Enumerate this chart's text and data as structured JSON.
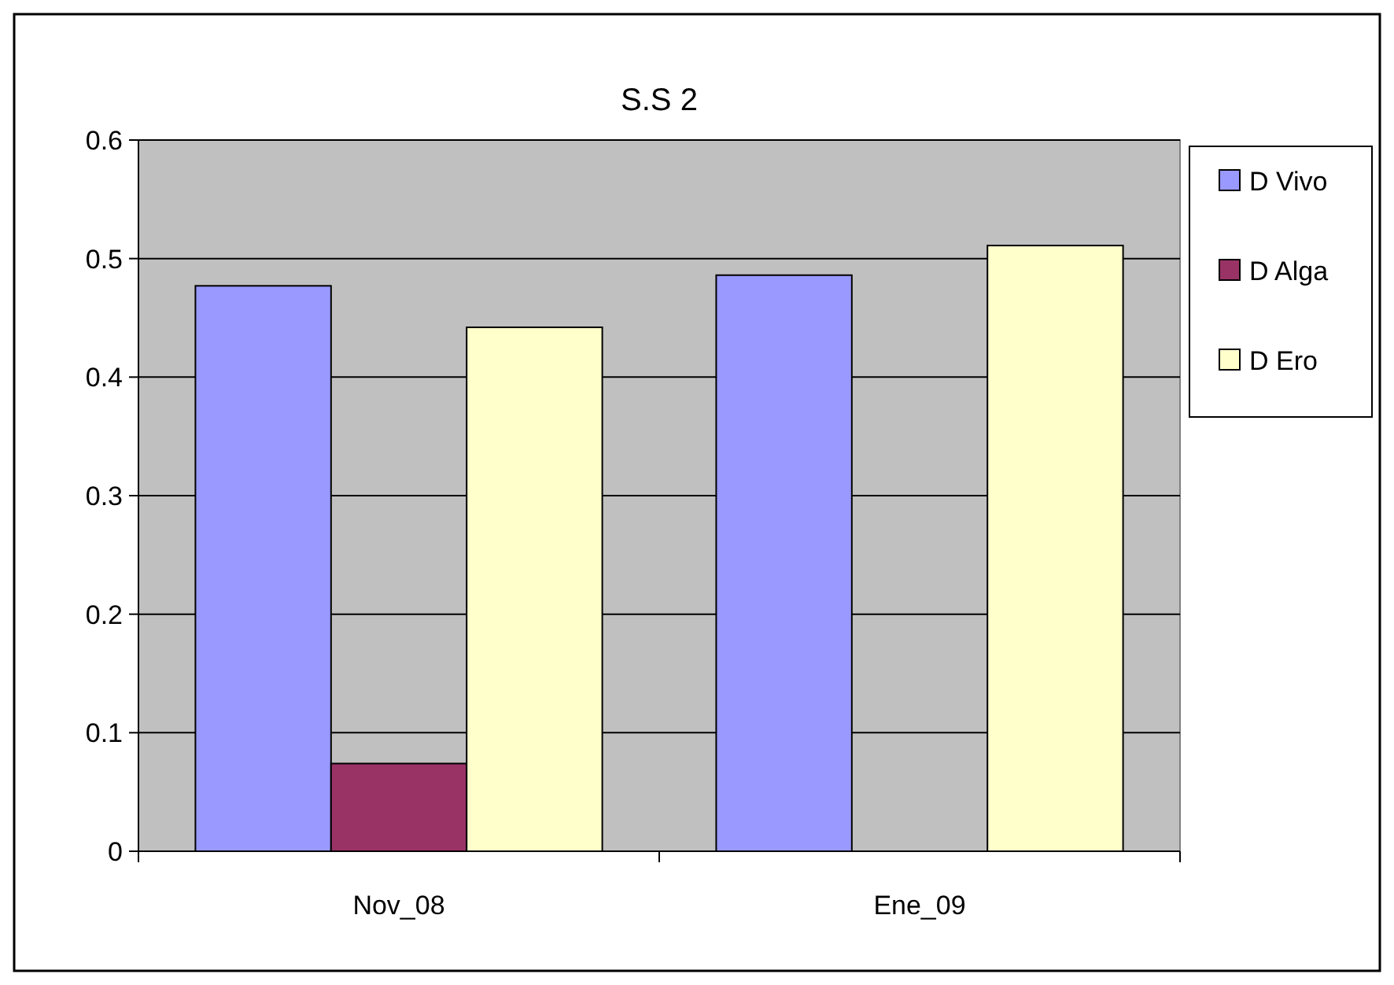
{
  "chart_data": {
    "type": "bar",
    "title": "S.S 2",
    "categories": [
      "Nov_08",
      "Ene_09"
    ],
    "series": [
      {
        "name": "D Vivo",
        "color": "#9999ff",
        "values": [
          0.477,
          0.486
        ]
      },
      {
        "name": "D Alga",
        "color": "#993366",
        "values": [
          0.074,
          null
        ]
      },
      {
        "name": "D Ero",
        "color": "#ffffcc",
        "values": [
          0.442,
          0.511
        ]
      }
    ],
    "ylim": [
      0,
      0.6
    ],
    "yticks": [
      0,
      0.1,
      0.2,
      0.3,
      0.4,
      0.5,
      0.6
    ],
    "grid": "y",
    "legend": "right"
  }
}
